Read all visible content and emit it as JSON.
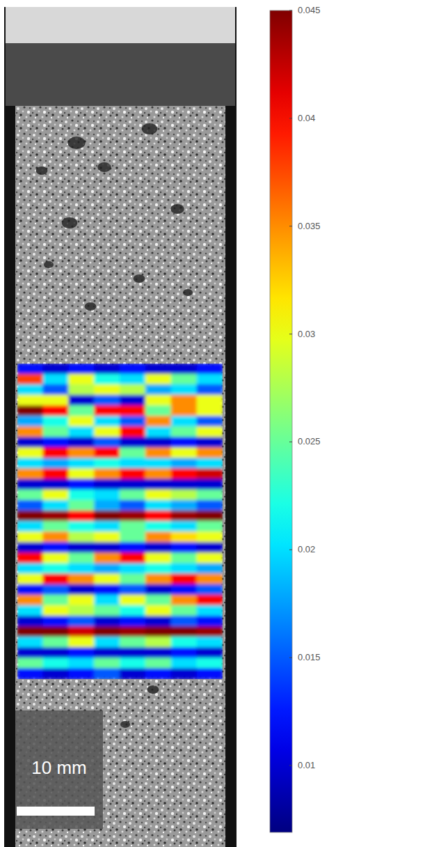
{
  "chart_data": {
    "type": "heatmap",
    "annotations": [
      "10 mm"
    ],
    "colorbar_range": [
      0.0069,
      0.045
    ],
    "colorbar_ticks": [
      0.01,
      0.015,
      0.02,
      0.025,
      0.03,
      0.035,
      0.04,
      0.045
    ],
    "values": [
      [
        0.012,
        0.01,
        0.012,
        0.01,
        0.012,
        0.01,
        0.01,
        0.012
      ],
      [
        0.038,
        0.02,
        0.03,
        0.022,
        0.02,
        0.03,
        0.025,
        0.02
      ],
      [
        0.02,
        0.015,
        0.028,
        0.03,
        0.028,
        0.018,
        0.02,
        0.015
      ],
      [
        0.03,
        0.03,
        0.01,
        0.015,
        0.01,
        0.03,
        0.035,
        0.03
      ],
      [
        0.045,
        0.04,
        0.025,
        0.04,
        0.04,
        0.025,
        0.035,
        0.03
      ],
      [
        0.018,
        0.022,
        0.03,
        0.02,
        0.015,
        0.035,
        0.02,
        0.015
      ],
      [
        0.035,
        0.025,
        0.02,
        0.03,
        0.04,
        0.02,
        0.025,
        0.03
      ],
      [
        0.01,
        0.012,
        0.01,
        0.015,
        0.01,
        0.01,
        0.012,
        0.01
      ],
      [
        0.03,
        0.04,
        0.035,
        0.04,
        0.025,
        0.035,
        0.03,
        0.035
      ],
      [
        0.02,
        0.018,
        0.02,
        0.022,
        0.02,
        0.02,
        0.018,
        0.02
      ],
      [
        0.035,
        0.04,
        0.03,
        0.035,
        0.04,
        0.035,
        0.04,
        0.042
      ],
      [
        0.01,
        0.01,
        0.012,
        0.01,
        0.01,
        0.01,
        0.01,
        0.01
      ],
      [
        0.025,
        0.03,
        0.022,
        0.02,
        0.025,
        0.03,
        0.028,
        0.025
      ],
      [
        0.015,
        0.02,
        0.025,
        0.018,
        0.015,
        0.02,
        0.018,
        0.015
      ],
      [
        0.045,
        0.044,
        0.04,
        0.045,
        0.044,
        0.04,
        0.044,
        0.045
      ],
      [
        0.02,
        0.025,
        0.022,
        0.02,
        0.025,
        0.022,
        0.02,
        0.025
      ],
      [
        0.03,
        0.035,
        0.028,
        0.03,
        0.025,
        0.035,
        0.032,
        0.03
      ],
      [
        0.01,
        0.012,
        0.01,
        0.01,
        0.012,
        0.01,
        0.012,
        0.01
      ],
      [
        0.04,
        0.03,
        0.025,
        0.035,
        0.04,
        0.03,
        0.025,
        0.03
      ],
      [
        0.02,
        0.022,
        0.02,
        0.018,
        0.02,
        0.022,
        0.02,
        0.018
      ],
      [
        0.03,
        0.04,
        0.035,
        0.03,
        0.025,
        0.035,
        0.04,
        0.035
      ],
      [
        0.012,
        0.015,
        0.01,
        0.012,
        0.015,
        0.01,
        0.012,
        0.015
      ],
      [
        0.035,
        0.025,
        0.03,
        0.02,
        0.03,
        0.025,
        0.035,
        0.04
      ],
      [
        0.02,
        0.03,
        0.028,
        0.025,
        0.022,
        0.03,
        0.025,
        0.02
      ],
      [
        0.01,
        0.012,
        0.015,
        0.01,
        0.012,
        0.01,
        0.015,
        0.012
      ],
      [
        0.045,
        0.045,
        0.042,
        0.045,
        0.044,
        0.045,
        0.045,
        0.044
      ],
      [
        0.02,
        0.025,
        0.03,
        0.02,
        0.025,
        0.028,
        0.022,
        0.02
      ],
      [
        0.01,
        0.01,
        0.012,
        0.01,
        0.01,
        0.01,
        0.012,
        0.01
      ],
      [
        0.025,
        0.022,
        0.02,
        0.025,
        0.022,
        0.025,
        0.02,
        0.022
      ],
      [
        0.012,
        0.01,
        0.012,
        0.015,
        0.01,
        0.012,
        0.01,
        0.012
      ]
    ]
  }
}
